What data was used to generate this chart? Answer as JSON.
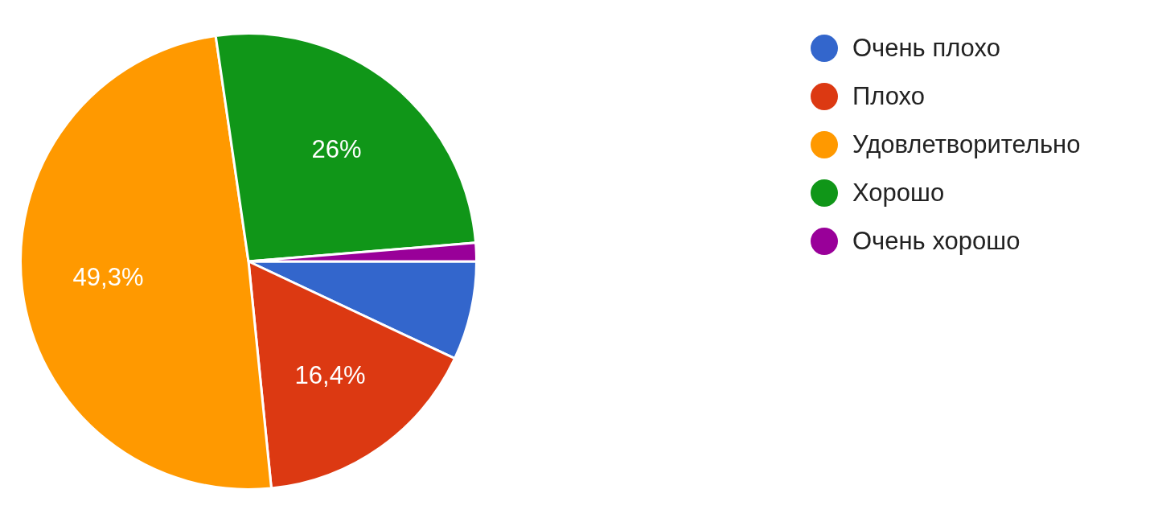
{
  "chart_data": {
    "type": "pie",
    "categories": [
      "Очень плохо",
      "Плохо",
      "Удовлетворительно",
      "Хорошо",
      "Очень хорошо"
    ],
    "values": [
      7,
      16.4,
      49.3,
      26,
      1.3
    ],
    "colors": [
      "#3366cc",
      "#dc3912",
      "#ff9900",
      "#109618",
      "#990099"
    ],
    "value_labels": [
      null,
      "16,4%",
      "49,3%",
      "26%",
      null
    ],
    "legend": "top right"
  }
}
